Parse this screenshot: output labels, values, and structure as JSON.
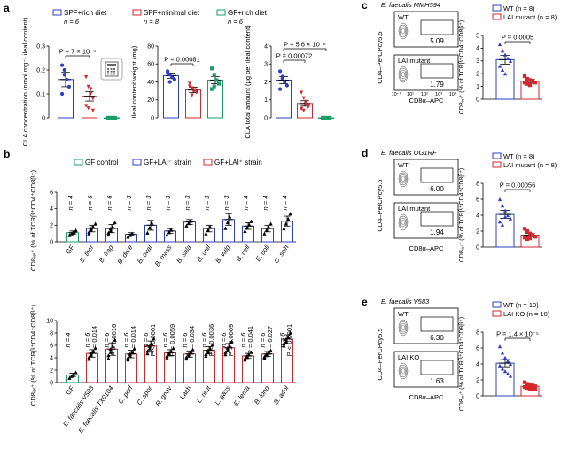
{
  "colors": {
    "SPF": "#2b3fc4",
    "red": "#d7262c",
    "green": "#1b9e68",
    "black": "#000000"
  },
  "panel_a": {
    "label": "a",
    "legend": [
      {
        "name": "SPF+rich diet",
        "n": "n = 6",
        "color": "#2b3fc4"
      },
      {
        "name": "SPF+minimal diet",
        "n": "n = 8",
        "color": "#d7262c"
      },
      {
        "name": "GF+rich diet",
        "n": "n = 6",
        "color": "#1b9e68"
      }
    ],
    "icon": "calculator-icon"
  },
  "panel_b": {
    "label": "b",
    "legend": [
      {
        "name": "GF control",
        "color": "#1b9e68"
      },
      {
        "name": "GF+LAI⁻ strain",
        "color": "#2b3fc4"
      },
      {
        "name": "GF+LAI⁺ strain",
        "color": "#d7262c"
      }
    ]
  },
  "chart_data": [
    {
      "id": "a1",
      "type": "bar",
      "ylabel": "CLA concentration (nmol mg⁻¹ ileal content)",
      "ylim": [
        0,
        0.3
      ],
      "yticks": [
        "0",
        "0.1",
        "0.2",
        "0.3"
      ],
      "categories": [
        "SPF+rich diet",
        "SPF+minimal diet",
        "GF+rich diet"
      ],
      "values": [
        0.16,
        0.09,
        0.0
      ],
      "errors": [
        0.03,
        0.02,
        0.0
      ],
      "points": [
        [
          0.22,
          0.18,
          0.16,
          0.13,
          0.1,
          0.2
        ],
        [
          0.17,
          0.13,
          0.1,
          0.08,
          0.05,
          0.04,
          0.12,
          0.03
        ],
        [
          0,
          0,
          0,
          0,
          0,
          0
        ]
      ],
      "pvalue": "P = 7 × 10⁻⁵"
    },
    {
      "id": "a2",
      "type": "bar",
      "ylabel": "Ileal content weight (mg)",
      "ylim": [
        0,
        80
      ],
      "yticks": [
        "0",
        "20",
        "40",
        "60",
        "80"
      ],
      "categories": [
        "SPF+rich diet",
        "SPF+minimal diet",
        "GF+rich diet"
      ],
      "values": [
        47,
        31,
        42
      ],
      "errors": [
        3,
        3,
        4
      ],
      "points": [
        [
          52,
          48,
          45,
          43,
          50,
          40
        ],
        [
          35,
          33,
          30,
          28,
          38,
          25,
          31,
          29
        ],
        [
          55,
          48,
          42,
          38,
          32,
          35
        ]
      ],
      "pvalue": "P = 0.00081"
    },
    {
      "id": "a3",
      "type": "bar",
      "ylabel": "CLA total amount (μg per ileal content)",
      "ylim": [
        0,
        4
      ],
      "yticks": [
        "0",
        "1",
        "2",
        "3",
        "4"
      ],
      "categories": [
        "SPF+rich diet",
        "SPF+minimal diet",
        "GF+rich diet"
      ],
      "values": [
        2.1,
        0.8,
        0.0
      ],
      "errors": [
        0.2,
        0.15,
        0.0
      ],
      "points": [
        [
          2.6,
          2.2,
          2.0,
          1.8,
          1.6,
          2.3
        ],
        [
          1.4,
          1.1,
          0.9,
          0.7,
          0.5,
          0.4,
          0.8,
          0.6
        ],
        [
          0,
          0,
          0,
          0,
          0,
          0
        ]
      ],
      "pvalue_top": "P = 5.6 × 10⁻⁶",
      "pvalue": "P = 0.00072"
    },
    {
      "id": "b1",
      "type": "bar",
      "ylabel": "CD8ᵢₑₗ⁺ (% of TCRβ⁺CD4⁺CD8β⁺)",
      "ylim": [
        0,
        6
      ],
      "yticks": [
        "0",
        "2",
        "4",
        "6"
      ],
      "categories": [
        "GF",
        "B. ther",
        "B. frag",
        "B. dore",
        "B. ovat",
        "B. mass",
        "B. sala",
        "B. unif",
        "B. vulg",
        "B. cell",
        "E. coli",
        "C. scin"
      ],
      "values": [
        1.1,
        1.6,
        1.6,
        0.9,
        2.0,
        1.3,
        2.4,
        1.6,
        2.7,
        1.9,
        1.6,
        2.5
      ],
      "errors": [
        0.2,
        0.4,
        0.5,
        0.2,
        0.6,
        0.3,
        0.3,
        0.4,
        0.7,
        0.4,
        0.4,
        0.6
      ],
      "n": [
        "n = 4",
        "n = 6",
        "n = 6",
        "n = 3",
        "n = 3",
        "n = 3",
        "n = 3",
        "n = 3",
        "n = 3",
        "n = 4",
        "n = 4",
        "n = 4"
      ],
      "groups": [
        "green",
        "blue",
        "blue",
        "blue",
        "blue",
        "blue",
        "blue",
        "blue",
        "blue",
        "blue",
        "blue",
        "blue"
      ]
    },
    {
      "id": "b2",
      "type": "bar",
      "ylabel": "CD8ᵢₑₗ⁺ (% of TCRβ⁺CD4⁺CD8β⁺)",
      "ylim": [
        0,
        10
      ],
      "yticks": [
        "0",
        "2",
        "4",
        "6",
        "8",
        "10"
      ],
      "categories": [
        "GF",
        "E. faecalis V583",
        "E. faecalis TX0104",
        "C. perf",
        "C. spor",
        "R. gnav",
        "Lach",
        "L. reut",
        "L. gass",
        "E. lenta",
        "B. long",
        "B. adol"
      ],
      "values": [
        1.2,
        4.7,
        5.4,
        4.6,
        5.9,
        4.8,
        4.6,
        5.2,
        5.6,
        4.3,
        4.6,
        7.0
      ],
      "errors": [
        0.3,
        0.6,
        1.0,
        0.6,
        0.8,
        0.5,
        0.5,
        0.6,
        0.7,
        0.4,
        0.4,
        0.7
      ],
      "n": [
        "n = 4",
        "n = 6",
        "n = 6",
        "n = 6",
        "n = 6",
        "n = 6",
        "n = 6",
        "n = 6",
        "n = 6",
        "n = 6",
        "n = 6",
        "n = 6"
      ],
      "pvalues": [
        "",
        "P = 0.014",
        "P = 0.0016",
        "P = 0.014",
        "P < 0.0001",
        "P = 0.0059",
        "P = 0.034",
        "P = 0.0036",
        "P = 0.0009",
        "P = 0.041",
        "P = 0.027",
        "P < 0.0001"
      ],
      "groups": [
        "green",
        "red",
        "red",
        "red",
        "red",
        "red",
        "red",
        "red",
        "red",
        "red",
        "red",
        "red"
      ]
    },
    {
      "id": "c",
      "type": "bar",
      "strain": "E. faecalis MMH594",
      "flow_labels": [
        "WT",
        "LAI mutant"
      ],
      "flow_values": [
        "5.09",
        "1.79"
      ],
      "flow_xaxis": "CD8α–APC",
      "flow_yaxis": "CD4–PerCPcy5.5",
      "flow_ticks": [
        "10⁻¹",
        "10¹",
        "10²",
        "10³",
        "10⁴"
      ],
      "ylabel": "CD8ᵢₑₗ⁺ (% of TCRβ⁺CD4⁺CD8β⁺)",
      "ylim": [
        0,
        5
      ],
      "yticks": [
        "0",
        "1",
        "2",
        "3",
        "4",
        "5"
      ],
      "legend": [
        "WT (n = 8)",
        "LAI mutant (n = 8)"
      ],
      "values": [
        3.1,
        1.4
      ],
      "errors": [
        0.35,
        0.15
      ],
      "points": [
        [
          4.3,
          3.8,
          3.5,
          3.2,
          3.0,
          2.6,
          2.3,
          2.0
        ],
        [
          1.8,
          1.6,
          1.5,
          1.4,
          1.3,
          1.3,
          1.2,
          1.1
        ]
      ],
      "pvalue": "P = 0.0005"
    },
    {
      "id": "d",
      "type": "bar",
      "strain": "E. faecalis OG1RF",
      "flow_labels": [
        "WT",
        "LAI mutant"
      ],
      "flow_values": [
        "6.00",
        "1.94"
      ],
      "flow_xaxis": "CD8α–APC",
      "flow_yaxis": "CD4–PerCPcy5.5",
      "ylabel": "CD8ᵢₑₗ⁺ (% of TCRβ⁺CD4⁺CD8β⁺)",
      "ylim": [
        0,
        8
      ],
      "yticks": [
        "0",
        "2",
        "4",
        "6",
        "8"
      ],
      "legend": [
        "WT (n = 8)",
        "LAI mutant (n = 8)"
      ],
      "values": [
        4.1,
        1.5
      ],
      "errors": [
        0.5,
        0.2
      ],
      "points": [
        [
          6.0,
          5.2,
          4.6,
          4.0,
          3.6,
          3.2,
          2.8,
          3.8
        ],
        [
          2.3,
          2.0,
          1.7,
          1.5,
          1.3,
          1.2,
          1.0,
          1.1
        ]
      ],
      "pvalue": "P = 0.00056"
    },
    {
      "id": "e",
      "type": "bar",
      "strain": "E. faecalis V583",
      "flow_labels": [
        "WT",
        "LAI KO"
      ],
      "flow_values": [
        "6.30",
        "1.63"
      ],
      "flow_xaxis": "CD8α–APC",
      "flow_yaxis": "CD4–PerCPcy5.5",
      "ylabel": "CD8ᵢₑₗ⁺ (% of TCRβ⁺CD4⁺CD8β⁺)",
      "ylim": [
        0,
        8
      ],
      "yticks": [
        "0",
        "2",
        "4",
        "6",
        "8"
      ],
      "legend": [
        "WT (n = 10)",
        "LAI KO (n = 10)"
      ],
      "values": [
        4.1,
        1.2
      ],
      "errors": [
        0.45,
        0.12
      ],
      "points": [
        [
          6.2,
          5.4,
          4.8,
          4.4,
          4.0,
          3.8,
          3.4,
          3.1,
          2.8,
          2.5
        ],
        [
          1.7,
          1.5,
          1.4,
          1.3,
          1.2,
          1.1,
          1.0,
          0.9,
          0.9,
          0.8
        ]
      ],
      "pvalue": "P = 1.4 × 10⁻⁵"
    }
  ]
}
